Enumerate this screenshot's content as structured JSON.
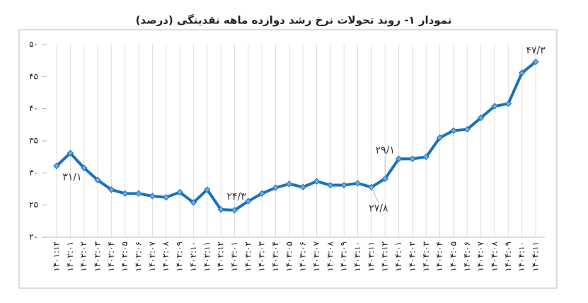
{
  "chart_data": {
    "type": "line",
    "title": "نمودار ۱- روند تحولات نرخ رشد دوازده ماهه نقدینگی (درصد)",
    "categories": [
      "۱۴۰۱:۱۲",
      "۱۴۰۲:۰۱",
      "۱۴۰۲:۰۲",
      "۱۴۰۲:۰۳",
      "۱۴۰۲:۰۴",
      "۱۴۰۲:۰۵",
      "۱۴۰۲:۰۶",
      "۱۴۰۲:۰۷",
      "۱۴۰۲:۰۸",
      "۱۴۰۲:۰۹",
      "۱۴۰۲:۱۰",
      "۱۴۰۲:۱۱",
      "۱۴۰۲:۱۲",
      "۱۴۰۳:۰۱",
      "۱۴۰۳:۰۲",
      "۱۴۰۳:۰۳",
      "۱۴۰۳:۰۴",
      "۱۴۰۳:۰۵",
      "۱۴۰۳:۰۶",
      "۱۴۰۳:۰۷",
      "۱۴۰۳:۰۸",
      "۱۴۰۳:۰۹",
      "۱۴۰۳:۱۰",
      "۱۴۰۳:۱۱",
      "۱۴۰۳:۱۲",
      "۱۴۰۴:۰۱",
      "۱۴۰۴:۰۲",
      "۱۴۰۴:۰۳",
      "۱۴۰۴:۰۴",
      "۱۴۰۴:۰۵",
      "۱۴۰۴:۰۶",
      "۱۴۰۴:۰۷",
      "۱۴۰۴:۰۸",
      "۱۴۰۴:۰۹",
      "۱۴۰۴:۱۰",
      "۱۴۰۴:۱۱"
    ],
    "values": [
      31.1,
      33.1,
      30.8,
      28.9,
      27.4,
      26.8,
      26.8,
      26.4,
      26.2,
      27.0,
      25.4,
      27.4,
      24.3,
      24.2,
      25.6,
      26.8,
      27.7,
      28.3,
      27.8,
      28.7,
      28.1,
      28.1,
      28.4,
      27.8,
      29.1,
      32.2,
      32.2,
      32.5,
      35.5,
      36.6,
      36.8,
      38.6,
      40.4,
      40.8,
      45.6,
      47.3
    ],
    "value_labels": [
      "۳۱/۱",
      null,
      null,
      null,
      null,
      null,
      null,
      null,
      null,
      null,
      null,
      null,
      "۲۴/۳",
      null,
      null,
      null,
      null,
      null,
      null,
      null,
      null,
      null,
      null,
      "۲۷/۸",
      "۲۹/۱",
      null,
      null,
      null,
      null,
      null,
      null,
      null,
      null,
      null,
      null,
      "۴۷/۳"
    ],
    "color": "#1a72bb",
    "ylim": [
      20,
      50
    ],
    "yticks": [
      {
        "value": 20,
        "label": "۲۰"
      },
      {
        "value": 25,
        "label": "۲۵"
      },
      {
        "value": 30,
        "label": "۳۰"
      },
      {
        "value": 35,
        "label": "۳۵"
      },
      {
        "value": 40,
        "label": "۴۰"
      },
      {
        "value": 45,
        "label": "۴۵"
      },
      {
        "value": 50,
        "label": "۵۰"
      }
    ],
    "grid": true
  }
}
